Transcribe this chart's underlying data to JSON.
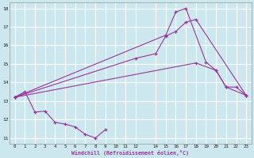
{
  "xlabel": "Windchill (Refroidissement éolien,°C)",
  "bg_color": "#cce8ee",
  "grid_color": "#ffffff",
  "line_color": "#993399",
  "xlim": [
    -0.5,
    23.5
  ],
  "ylim": [
    10.7,
    18.3
  ],
  "yticks": [
    11,
    12,
    13,
    14,
    15,
    16,
    17,
    18
  ],
  "xticks": [
    0,
    1,
    2,
    3,
    4,
    5,
    6,
    7,
    8,
    9,
    10,
    11,
    12,
    14,
    15,
    16,
    17,
    18,
    19,
    20,
    21,
    22,
    23
  ],
  "line1_x": [
    0,
    1,
    2,
    3,
    4,
    5,
    6,
    7,
    8,
    9
  ],
  "line1_y": [
    13.2,
    13.5,
    12.4,
    12.45,
    11.85,
    11.75,
    11.6,
    11.2,
    11.0,
    11.45
  ],
  "line2_x": [
    0,
    18,
    20,
    21,
    23
  ],
  "line2_y": [
    13.2,
    15.05,
    14.65,
    13.75,
    13.3
  ],
  "line3_x": [
    0,
    12,
    14,
    15,
    16,
    17,
    18,
    23
  ],
  "line3_y": [
    13.2,
    15.3,
    15.55,
    16.5,
    16.75,
    17.25,
    17.4,
    13.3
  ],
  "line4_x": [
    0,
    15,
    16,
    17,
    19,
    20,
    21,
    22,
    23
  ],
  "line4_y": [
    13.2,
    16.55,
    17.8,
    18.0,
    15.1,
    14.65,
    13.75,
    13.75,
    13.3
  ]
}
